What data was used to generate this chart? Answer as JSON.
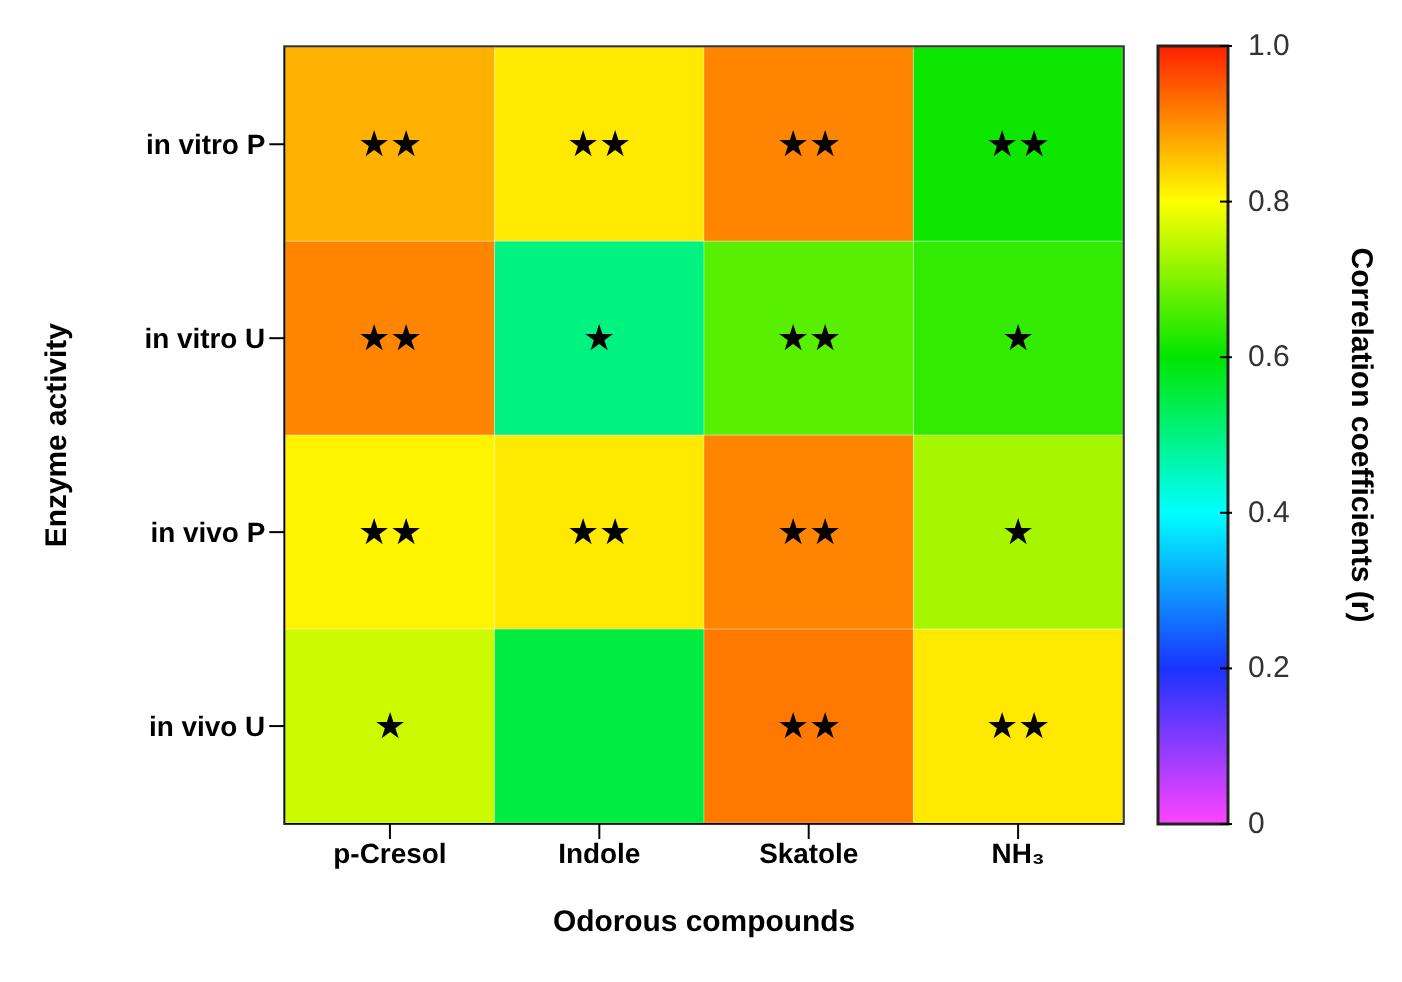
{
  "chart_data": {
    "type": "heatmap",
    "xlabel": "Odorous compounds",
    "ylabel": "Enzyme activity",
    "clabel": "Correlation coefficients (r)",
    "categories": [
      "p-Cresol",
      "Indole",
      "Skatole",
      "NH₃"
    ],
    "y_categories": [
      "in vitro P",
      "in vitro U",
      "in vivo P",
      "in vivo U"
    ],
    "cells": [
      [
        0.87,
        0.82,
        0.91,
        0.61
      ],
      [
        0.91,
        0.5,
        0.67,
        0.64
      ],
      [
        0.81,
        0.82,
        0.91,
        0.73
      ],
      [
        0.76,
        0.55,
        0.92,
        0.82
      ]
    ],
    "cell_labels": [
      [
        "★★",
        "★★",
        "★★",
        "★★"
      ],
      [
        "★★",
        "★",
        "★★",
        "★"
      ],
      [
        "★★",
        "★★",
        "★★",
        "★"
      ],
      [
        "★",
        null,
        "★★",
        "★★"
      ]
    ],
    "clim": [
      0,
      1
    ],
    "cticks": [
      0,
      0.2,
      0.4,
      0.6,
      0.8,
      {
        "value": 1,
        "label": "1.0"
      }
    ]
  }
}
